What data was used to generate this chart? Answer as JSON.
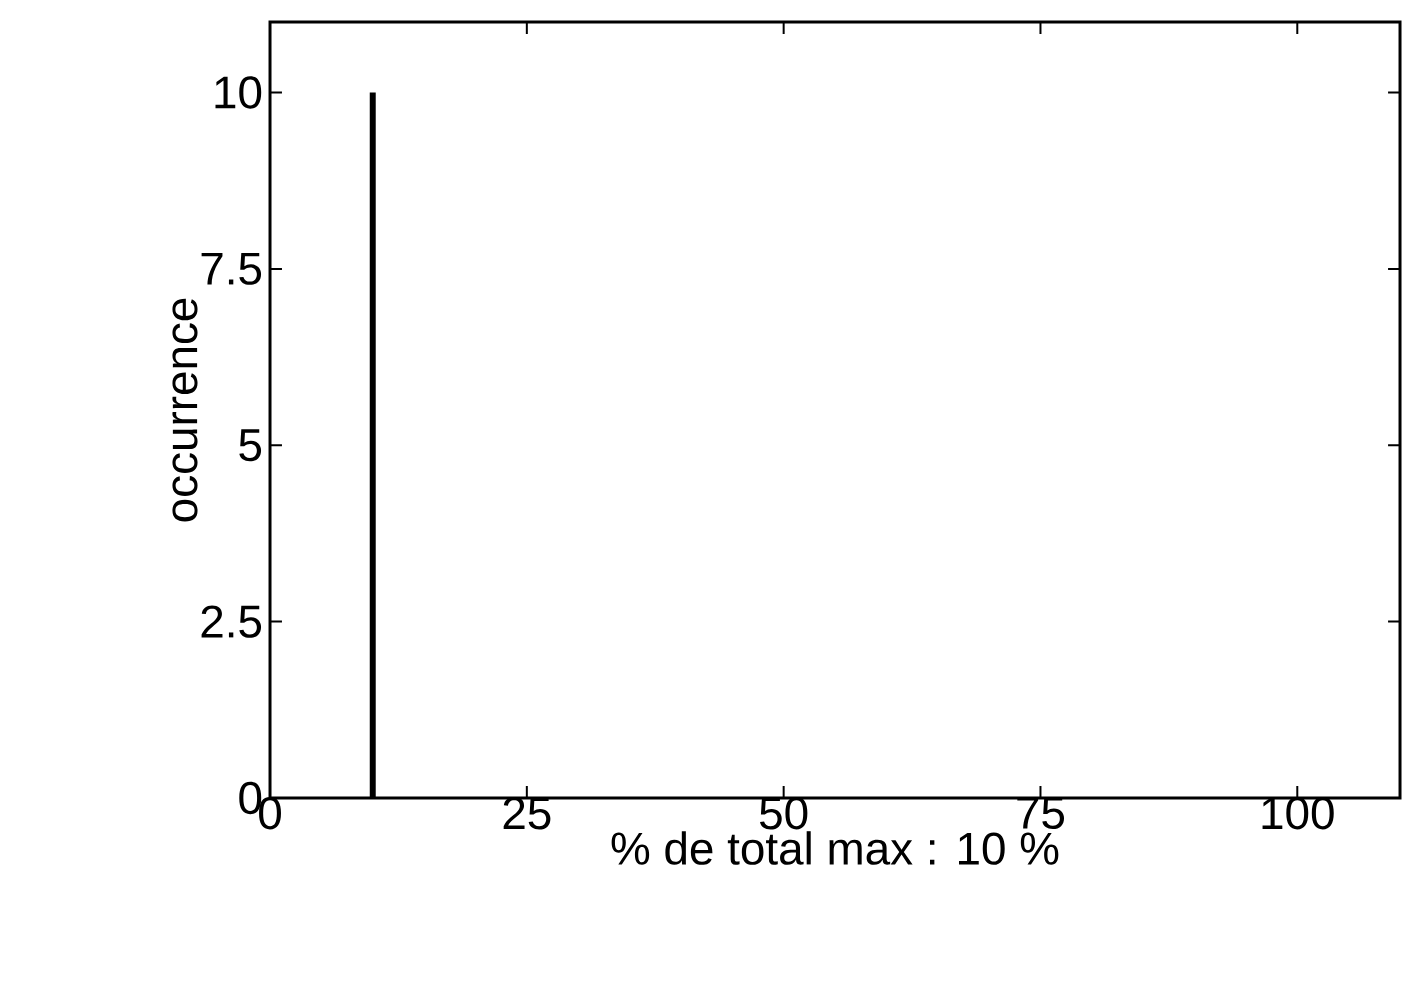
{
  "chart_data": {
    "type": "bar",
    "xlabel": "% de total max : 10 %",
    "ylabel": "occurrence",
    "x": [
      10
    ],
    "values": [
      10
    ],
    "color": "#000000",
    "xlim": [
      0,
      110
    ],
    "ylim": [
      0,
      11
    ],
    "xticks": [
      0,
      25,
      50,
      75,
      100
    ],
    "yticks": [
      0,
      2.5,
      5,
      7.5,
      10
    ]
  }
}
